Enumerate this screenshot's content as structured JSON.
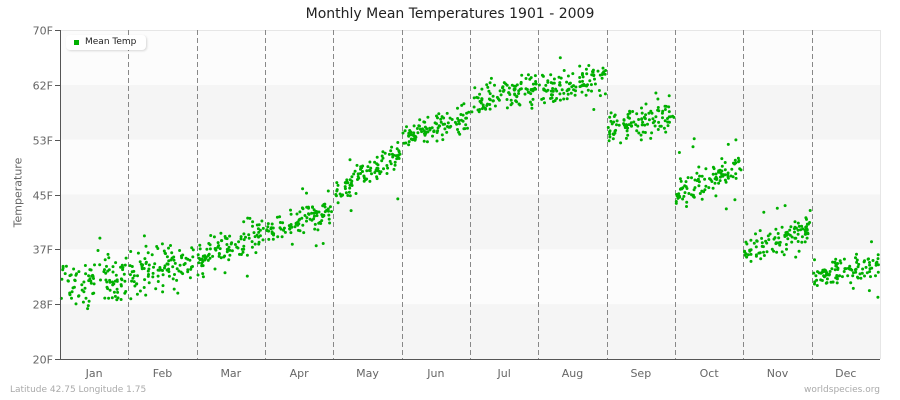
{
  "chart_data": {
    "type": "scatter",
    "title": "Monthly Mean Temperatures 1901 - 2009",
    "xlabel": "",
    "ylabel": "Temperature",
    "ylim": [
      20,
      70
    ],
    "y_ticks": [
      "20F",
      "28F",
      "37F",
      "45F",
      "53F",
      "62F",
      "70F"
    ],
    "categories": [
      "Jan",
      "Feb",
      "Mar",
      "Apr",
      "May",
      "Jun",
      "Jul",
      "Aug",
      "Sep",
      "Oct",
      "Nov",
      "Dec"
    ],
    "legend": {
      "entries": [
        "Mean Temp"
      ],
      "position": "top-left"
    },
    "grid": {
      "horizontal_bands": true,
      "vertical_dashed_month_dividers": true
    },
    "series": [
      {
        "name": "Mean Temp",
        "color": "#00b000",
        "points_per_month": 109,
        "monthly_ranges": [
          {
            "month": "Jan",
            "start_min": 27,
            "start_max": 36,
            "end_min": 28,
            "end_max": 37,
            "low": 24,
            "high": 38.5
          },
          {
            "month": "Feb",
            "start_min": 28,
            "start_max": 37,
            "end_min": 31,
            "end_max": 39,
            "low": 26,
            "high": 41
          },
          {
            "month": "Mar",
            "start_min": 32,
            "start_max": 38,
            "end_min": 36,
            "end_max": 42,
            "low": 31,
            "high": 43
          },
          {
            "month": "Apr",
            "start_min": 37,
            "start_max": 42,
            "end_min": 40,
            "end_max": 45,
            "low": 37,
            "high": 46
          },
          {
            "month": "May",
            "start_min": 42,
            "start_max": 48,
            "end_min": 48,
            "end_max": 54,
            "low": 41,
            "high": 54
          },
          {
            "month": "Jun",
            "start_min": 51,
            "start_max": 56,
            "end_min": 54,
            "end_max": 60,
            "low": 50,
            "high": 60.5
          },
          {
            "month": "Jul",
            "start_min": 56,
            "start_max": 62,
            "end_min": 58,
            "end_max": 65,
            "low": 55,
            "high": 69
          },
          {
            "month": "Aug",
            "start_min": 58,
            "start_max": 63,
            "end_min": 60,
            "end_max": 66,
            "low": 56,
            "high": 67
          },
          {
            "month": "Sep",
            "start_min": 51,
            "start_max": 58,
            "end_min": 54,
            "end_max": 61,
            "low": 49,
            "high": 61
          },
          {
            "month": "Oct",
            "start_min": 42,
            "start_max": 48,
            "end_min": 46,
            "end_max": 53,
            "low": 41,
            "high": 53.5
          },
          {
            "month": "Nov",
            "start_min": 34,
            "start_max": 39,
            "end_min": 37,
            "end_max": 43,
            "low": 33,
            "high": 44
          },
          {
            "month": "Dec",
            "start_min": 30,
            "start_max": 36,
            "end_min": 31,
            "end_max": 37,
            "low": 28,
            "high": 39
          }
        ]
      }
    ]
  },
  "header": {
    "title": "Monthly Mean Temperatures 1901 - 2009"
  },
  "axis": {
    "ylabel": "Temperature"
  },
  "legend": {
    "label": "Mean Temp",
    "color": "#00b000"
  },
  "footer": {
    "location": "Latitude 42.75 Longitude 1.75",
    "source": "worldspecies.org"
  }
}
